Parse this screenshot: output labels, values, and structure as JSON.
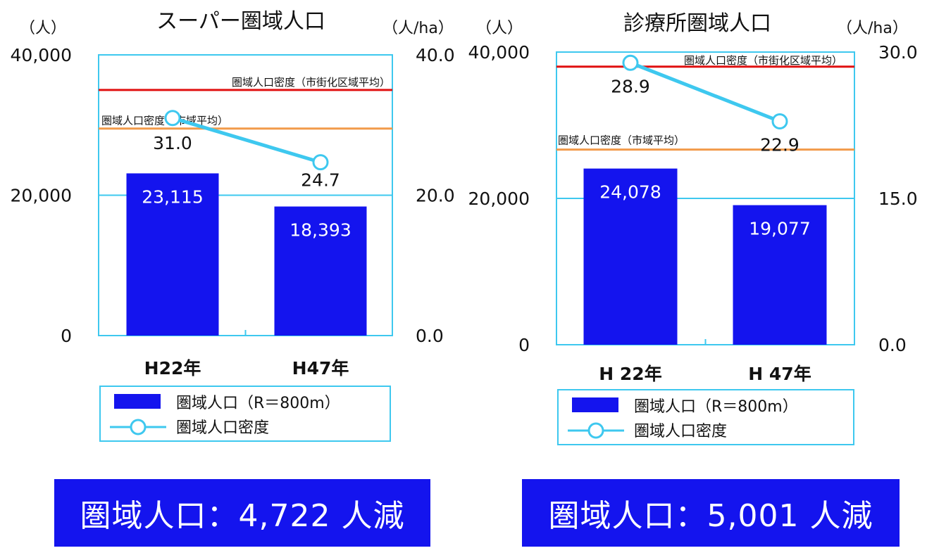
{
  "chart_data": [
    {
      "type": "bar",
      "title": "スーパー圏域人口",
      "left_unit": "（人）",
      "right_unit": "（人/ha）",
      "categories": [
        "H22年",
        "H47年"
      ],
      "series": [
        {
          "name": "圏域人口（R＝800m）",
          "axis": "left",
          "values": [
            23115,
            18393
          ],
          "labels": [
            "23,115",
            "18,393"
          ]
        },
        {
          "name": "圏域人口密度",
          "axis": "right",
          "kind": "line",
          "values": [
            31.0,
            24.7
          ],
          "labels": [
            "31.0",
            "24.7"
          ]
        }
      ],
      "reference_lines": [
        {
          "label": "圏域人口密度（市街化区域平均）",
          "value": 35.0,
          "color": "#e01010"
        },
        {
          "label": "圏域人口密度（市域平均）",
          "value": 29.5,
          "color": "#f29a4a"
        }
      ],
      "ylim": [
        0,
        40000
      ],
      "y2lim": [
        0,
        40.0
      ],
      "yticks": [
        "0",
        "20,000",
        "40,000"
      ],
      "y2ticks": [
        "0.0",
        "20.0",
        "40.0"
      ],
      "legend": [
        "圏域人口（R＝800m）",
        "圏域人口密度"
      ],
      "summary": "圏域人口：4,722 人減"
    },
    {
      "type": "bar",
      "title": "診療所圏域人口",
      "left_unit": "（人）",
      "right_unit": "（人/ha）",
      "categories": [
        "H 22年",
        "H 47年"
      ],
      "series": [
        {
          "name": "圏域人口（R＝800m）",
          "axis": "left",
          "values": [
            24078,
            19077
          ],
          "labels": [
            "24,078",
            "19,077"
          ]
        },
        {
          "name": "圏域人口密度",
          "axis": "right",
          "kind": "line",
          "values": [
            28.9,
            22.9
          ],
          "labels": [
            "28.9",
            "22.9"
          ]
        }
      ],
      "reference_lines": [
        {
          "label": "圏域人口密度（市街化区域平均）",
          "value": 28.5,
          "color": "#e01010"
        },
        {
          "label": "圏域人口密度（市域平均）",
          "value": 20.0,
          "color": "#f29a4a"
        }
      ],
      "ylim": [
        0,
        40000
      ],
      "y2lim": [
        0,
        30.0
      ],
      "yticks": [
        "0",
        "20,000",
        "40,000"
      ],
      "y2ticks": [
        "0.0",
        "15.0",
        "30.0"
      ],
      "legend": [
        "圏域人口（R＝800m）",
        "圏域人口密度"
      ],
      "summary": "圏域人口：5,001 人減"
    }
  ]
}
